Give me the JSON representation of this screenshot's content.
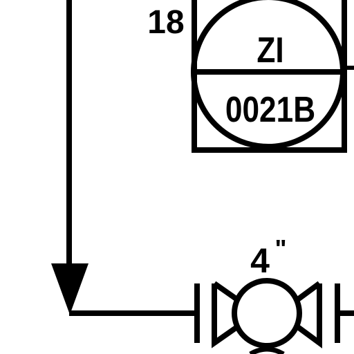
{
  "diagram": {
    "type": "P&ID fragment",
    "colors": {
      "line": "#000000",
      "background": "#ffffff"
    },
    "instrument": {
      "icon": "instrument-bubble-icon",
      "number": "18",
      "function_code": "ZI",
      "tag": "0021B"
    },
    "flow_arrow": {
      "icon": "flow-arrow-down-icon"
    },
    "valve": {
      "icon": "ball-valve-icon",
      "size": "4",
      "size_unit": "\""
    }
  }
}
